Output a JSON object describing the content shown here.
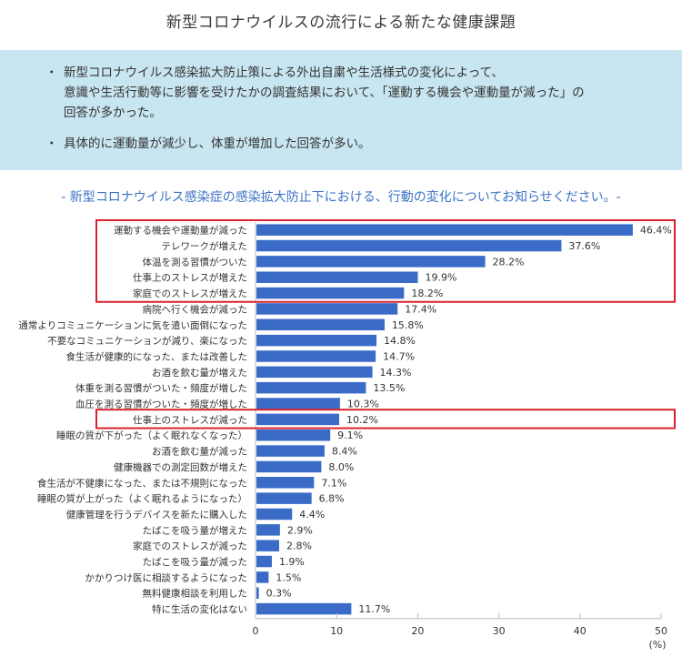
{
  "title": "新型コロナウイルスの流行による新たな健康課題",
  "infobox": {
    "bullets": [
      {
        "marker": "・",
        "text": "新型コロナウイルス感染拡大防止策による外出自粛や生活様式の変化によって、\n意識や生活行動等に影響を受けたかの調査結果において、「運動する機会や運動量が減った」の\n回答が多かった。"
      },
      {
        "marker": "・",
        "text": "具体的に運動量が減少し、体重が増加した回答が多い。"
      }
    ]
  },
  "colors": {
    "bar": "#3a6bc6",
    "highlight_border": "#d9232d",
    "infobox_bg": "#c8e6f1",
    "subtitle": "#3b72c5"
  },
  "chart_data": {
    "type": "bar",
    "orientation": "horizontal",
    "title": "- 新型コロナウイルス感染症の感染拡大防止下における、行動の変化についてお知らせください。-",
    "xlabel": "(%)",
    "ylabel": "",
    "xlim": [
      0,
      50
    ],
    "xticks": [
      0,
      10,
      20,
      30,
      40,
      50
    ],
    "grid": false,
    "value_suffix": "%",
    "categories": [
      "運動する機会や運動量が減った",
      "テレワークが増えた",
      "体温を測る習慣がついた",
      "仕事上のストレスが増えた",
      "家庭でのストレスが増えた",
      "病院へ行く機会が減った",
      "通常よりコミュニケーションに気を遣い面倒になった",
      "不要なコミュニケーションが減り、楽になった",
      "食生活が健康的になった、または改善した",
      "お酒を飲む量が増えた",
      "体重を測る習慣がついた・頻度が増した",
      "血圧を測る習慣がついた・頻度が増した",
      "仕事上のストレスが減った",
      "睡眠の質が下がった（よく眠れなくなった）",
      "お酒を飲む量が減った",
      "健康機器での測定回数が増えた",
      "食生活が不健康になった、または不規則になった",
      "睡眠の質が上がった（よく眠れるようになった）",
      "健康管理を行うデバイスを新たに購入した",
      "たばこを吸う量が増えた",
      "家庭でのストレスが減った",
      "たばこを吸う量が減った",
      "かかりつけ医に相談するようになった",
      "無料健康相談を利用した",
      "特に生活の変化はない"
    ],
    "values": [
      46.4,
      37.6,
      28.2,
      19.9,
      18.2,
      17.4,
      15.8,
      14.8,
      14.7,
      14.3,
      13.5,
      10.3,
      10.2,
      9.1,
      8.4,
      8.0,
      7.1,
      6.8,
      4.4,
      2.9,
      2.8,
      1.9,
      1.5,
      0.3,
      11.7
    ],
    "value_labels": [
      "46.4%",
      "37.6%",
      "28.2%",
      "19.9%",
      "18.2%",
      "17.4%",
      "15.8%",
      "14.8%",
      "14.7%",
      "14.3%",
      "13.5%",
      "10.3%",
      "10.2%",
      "9.1%",
      "8.4%",
      "8.0%",
      "7.1%",
      "6.8%",
      "4.4%",
      "2.9%",
      "2.8%",
      "1.9%",
      "1.5%",
      "0.3%",
      "11.7%"
    ],
    "highlight_groups": [
      {
        "from_index": 0,
        "to_index": 4
      },
      {
        "from_index": 12,
        "to_index": 12
      }
    ]
  }
}
